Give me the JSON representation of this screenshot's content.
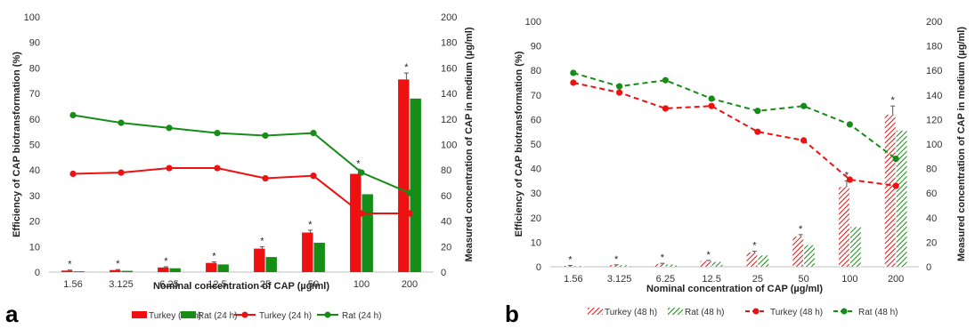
{
  "colors": {
    "turkey": "#ee1111",
    "rat": "#168d16",
    "axis": "#bfbfbf",
    "errbar": "#555555"
  },
  "chart_data": [
    {
      "panel_label": "a",
      "type": "bar",
      "xlabel": "Nominal concentration of CAP (µg/ml)",
      "ylabel": "Efficiency of CAP biotransformation (%)",
      "y2label": "Measured concentration of CAP in medium (µg/ml)",
      "ylim": [
        0,
        100
      ],
      "yticks": [
        0,
        10,
        20,
        30,
        40,
        50,
        60,
        70,
        80,
        90,
        100
      ],
      "y2lim": [
        0,
        200
      ],
      "y2ticks": [
        0,
        20,
        40,
        60,
        80,
        100,
        120,
        140,
        160,
        180,
        200
      ],
      "categories": [
        "1.56",
        "3.125",
        "6.25",
        "12.5",
        "25",
        "50",
        "100",
        "200"
      ],
      "bar_series": [
        {
          "name": "Turkey (24 h)",
          "pattern": "solid",
          "color_key": "turkey",
          "values": [
            0.6,
            0.8,
            1.8,
            3.6,
            9.2,
            15.5,
            38.5,
            75.5
          ],
          "errors": [
            0.2,
            0.2,
            0.3,
            0.4,
            0.7,
            0.9,
            1.8,
            2.5
          ]
        },
        {
          "name": "Rat (24 h)",
          "pattern": "solid",
          "color_key": "rat",
          "values": [
            0.3,
            0.5,
            1.5,
            3.0,
            5.9,
            11.5,
            30.5,
            68
          ]
        }
      ],
      "line_series": [
        {
          "name": "Turkey (24 h)",
          "color_key": "turkey",
          "dash": false,
          "values": [
            77,
            78,
            81.5,
            81.5,
            73.5,
            75.5,
            46,
            46
          ]
        },
        {
          "name": "Rat (24 h)",
          "color_key": "rat",
          "dash": false,
          "values": [
            123,
            117,
            113,
            109,
            107,
            109,
            78,
            62
          ]
        }
      ],
      "significance": [
        "*",
        "*",
        "*",
        "*",
        "*",
        "*",
        "*",
        "*"
      ],
      "legend_position": "bottom"
    },
    {
      "panel_label": "b",
      "type": "bar",
      "xlabel": "Nominal concentration of CAP (µg/ml)",
      "ylabel": "Efficiency of CAP biotransformation (%)",
      "y2label": "Measured concentration of CAP in medium (µg/ml)",
      "ylim": [
        0,
        100
      ],
      "yticks": [
        0,
        10,
        20,
        30,
        40,
        50,
        60,
        70,
        80,
        90,
        100
      ],
      "y2lim": [
        0,
        200
      ],
      "y2ticks": [
        0,
        20,
        40,
        60,
        80,
        100,
        120,
        140,
        160,
        180,
        200
      ],
      "categories": [
        "1.56",
        "3.125",
        "6.25",
        "12.5",
        "25",
        "50",
        "100",
        "200"
      ],
      "bar_series": [
        {
          "name": "Turkey (48 h)",
          "pattern": "hatch",
          "color_key": "turkey",
          "values": [
            0.4,
            0.7,
            1.2,
            2.3,
            5.8,
            12.3,
            32.5,
            62
          ],
          "errors": [
            0.1,
            0.1,
            0.2,
            0.3,
            0.5,
            0.8,
            2.5,
            3.5
          ]
        },
        {
          "name": "Rat (48 h)",
          "pattern": "hatch",
          "color_key": "rat",
          "values": [
            0.3,
            0.6,
            0.9,
            2.0,
            4.6,
            8.8,
            16.2,
            55.5
          ]
        }
      ],
      "line_series": [
        {
          "name": "Turkey (48 h)",
          "color_key": "turkey",
          "dash": true,
          "values": [
            150,
            142,
            129,
            131,
            110,
            103,
            71,
            66
          ]
        },
        {
          "name": "Rat (48 h)",
          "color_key": "rat",
          "dash": true,
          "values": [
            158,
            147,
            152,
            137,
            127,
            131,
            116,
            88
          ]
        }
      ],
      "significance": [
        "*",
        "*",
        "*",
        "*",
        "*",
        "*",
        "*",
        "*"
      ],
      "legend_position": "bottom"
    }
  ]
}
